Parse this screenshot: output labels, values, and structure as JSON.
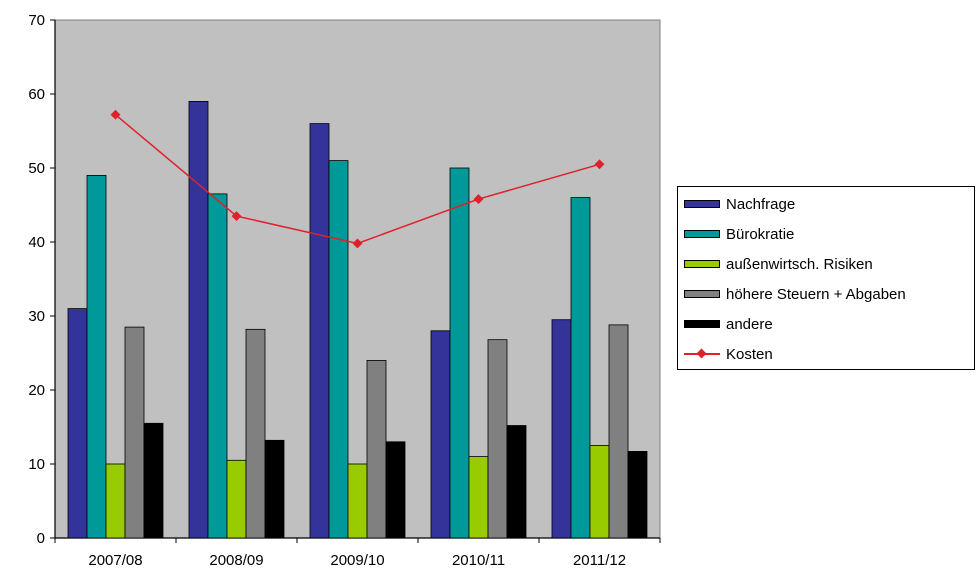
{
  "chart_data": {
    "type": "bar",
    "categories": [
      "2007/08",
      "2008/09",
      "2009/10",
      "2010/11",
      "2011/12"
    ],
    "ylim": [
      0,
      70
    ],
    "yticks": [
      0,
      10,
      20,
      30,
      40,
      50,
      60,
      70
    ],
    "grid": false,
    "plot_background": "#c0c0c0",
    "legend_position": "right",
    "series": [
      {
        "name": "Nachfrage",
        "type": "bar",
        "color": "#333399",
        "values": [
          31,
          59,
          56,
          28,
          29.5
        ]
      },
      {
        "name": "Bürokratie",
        "type": "bar",
        "color": "#009999",
        "values": [
          49,
          46.5,
          51,
          50,
          46
        ]
      },
      {
        "name": "außenwirtsch. Risiken",
        "type": "bar",
        "color": "#99cc00",
        "values": [
          10,
          10.5,
          10,
          11,
          12.5
        ]
      },
      {
        "name": "höhere Steuern + Abgaben",
        "type": "bar",
        "color": "#808080",
        "values": [
          28.5,
          28.2,
          24,
          26.8,
          28.8
        ]
      },
      {
        "name": "andere",
        "type": "bar",
        "color": "#000000",
        "values": [
          15.5,
          13.2,
          13,
          15.2,
          11.7
        ]
      },
      {
        "name": "Kosten",
        "type": "line",
        "color": "#e0202a",
        "values": [
          57.2,
          43.5,
          39.8,
          45.8,
          50.5
        ]
      }
    ]
  }
}
